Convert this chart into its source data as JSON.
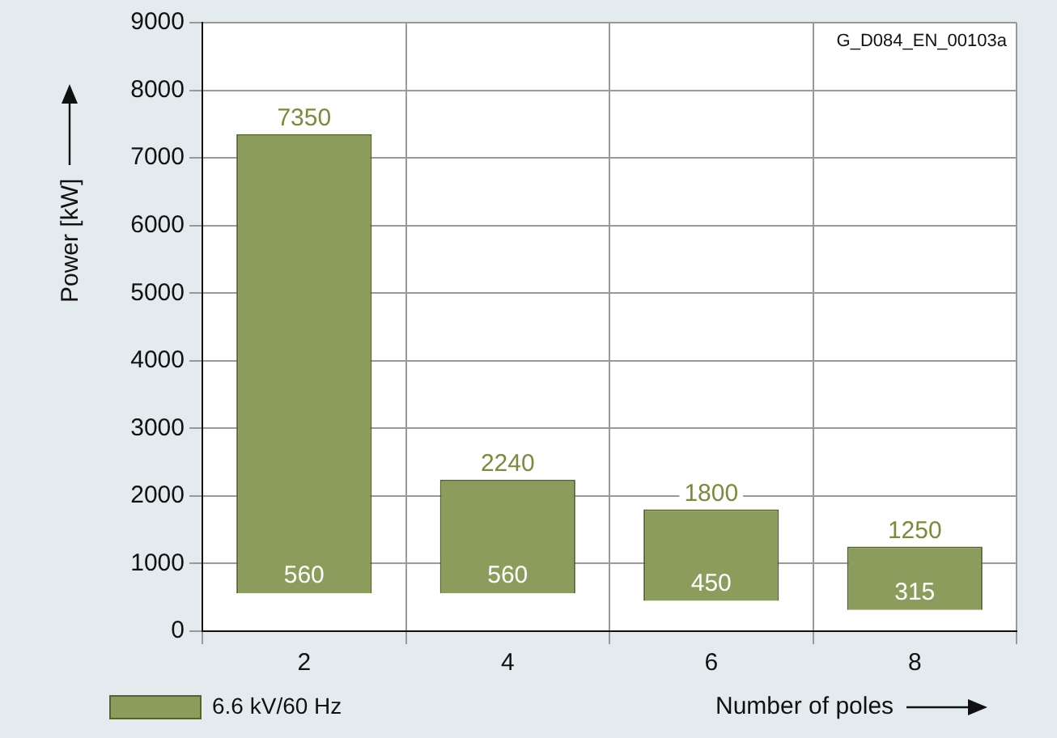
{
  "chart_data": {
    "type": "bar",
    "xlabel": "Number of poles",
    "ylabel": "Power [kW]",
    "categories": [
      "2",
      "4",
      "6",
      "8"
    ],
    "series": [
      {
        "name": "6.6 kV/60 Hz",
        "color": "#8c9c5c",
        "values": [
          6790,
          1680,
          1350,
          935
        ],
        "base": [
          560,
          560,
          450,
          315
        ]
      }
    ],
    "ylim": [
      0,
      9000
    ],
    "yticks": [
      0,
      1000,
      2000,
      3000,
      4000,
      5000,
      6000,
      7000,
      8000,
      9000
    ],
    "grid": true,
    "legend": "bottom left",
    "annotations": [
      "G_D084_EN_00103a",
      {
        "text": "7350",
        "x": "2",
        "y": 7350
      },
      {
        "text": "560",
        "x": "2",
        "y": 560
      },
      {
        "text": "2240",
        "x": "4",
        "y": 2240
      },
      {
        "text": "560",
        "x": "4",
        "y": 560
      },
      {
        "text": "1800",
        "x": "6",
        "y": 1800
      },
      {
        "text": "450",
        "x": "6",
        "y": 450
      },
      {
        "text": "1250",
        "x": "8",
        "y": 1250
      },
      {
        "text": "315",
        "x": "8",
        "y": 315
      }
    ]
  }
}
